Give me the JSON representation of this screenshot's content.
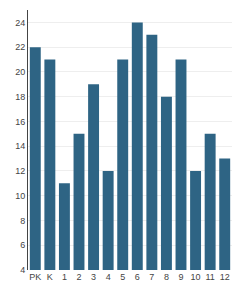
{
  "chart_data": {
    "type": "bar",
    "categories": [
      "PK",
      "K",
      "1",
      "2",
      "3",
      "4",
      "5",
      "6",
      "7",
      "8",
      "9",
      "10",
      "11",
      "12"
    ],
    "values": [
      22,
      21,
      11,
      15,
      19,
      12,
      21,
      24,
      23,
      18,
      21,
      12,
      15,
      13
    ],
    "color": "#2e6484",
    "ylim": [
      4,
      25
    ],
    "yticks": [
      4,
      6,
      8,
      10,
      12,
      14,
      16,
      18,
      20,
      22,
      24
    ],
    "grid": true
  }
}
